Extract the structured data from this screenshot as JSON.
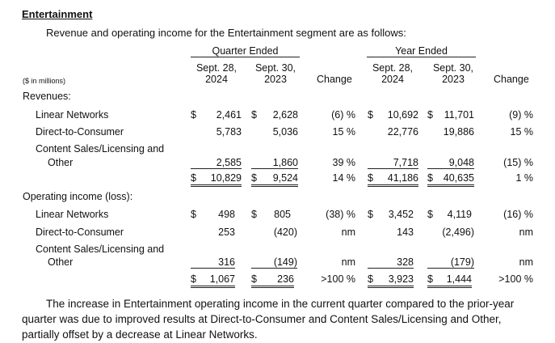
{
  "section_title": "Entertainment",
  "intro": "Revenue and operating income for the Entertainment segment are as follows:",
  "header": {
    "quarter_group": "Quarter Ended",
    "year_group": "Year Ended",
    "col1": [
      "Sept. 28,",
      "2024"
    ],
    "col2": [
      "Sept. 30,",
      "2023"
    ],
    "col4": [
      "Sept. 28,",
      "2024"
    ],
    "col5": [
      "Sept. 30,",
      "2023"
    ],
    "change": "Change",
    "units": "($ in millions)"
  },
  "revenues": {
    "label": "Revenues:",
    "rows": [
      {
        "label": "Linear Networks",
        "q24": "2,461",
        "q23": "2,628",
        "qchg": "(6) %",
        "y24": "10,692",
        "y23": "11,701",
        "ychg": "(9) %"
      },
      {
        "label": "Direct-to-Consumer",
        "q24": "5,783",
        "q23": "5,036",
        "qchg": "15 %",
        "y24": "22,776",
        "y23": "19,886",
        "ychg": "15 %"
      },
      {
        "label1": "Content Sales/Licensing and",
        "label2": "Other",
        "q24": "2,585",
        "q23": "1,860",
        "qchg": "39 %",
        "y24": "7,718",
        "y23": "9,048",
        "ychg": "(15) %"
      }
    ],
    "total": {
      "q24": "10,829",
      "q23": "9,524",
      "qchg": "14 %",
      "y24": "41,186",
      "y23": "40,635",
      "ychg": "1 %"
    }
  },
  "operating_income": {
    "label": "Operating income (loss):",
    "rows": [
      {
        "label": "Linear Networks",
        "q24": "498",
        "q23": "805",
        "qchg": "(38) %",
        "y24": "3,452",
        "y23": "4,119",
        "ychg": "(16) %"
      },
      {
        "label": "Direct-to-Consumer",
        "q24": "253",
        "q23": "(420)",
        "qchg": "nm",
        "y24": "143",
        "y23": "(2,496)",
        "ychg": "nm"
      },
      {
        "label1": "Content Sales/Licensing and",
        "label2": "Other",
        "q24": "316",
        "q23": "(149)",
        "qchg": "nm",
        "y24": "328",
        "y23": "(179)",
        "ychg": "nm"
      }
    ],
    "total": {
      "q24": "1,067",
      "q23": "236",
      "qchg": ">100 %",
      "y24": "3,923",
      "y23": "1,444",
      "ychg": ">100 %"
    }
  },
  "currency_symbol": "$",
  "closing_paragraph": [
    "The increase in Entertainment operating income in the current quarter compared to the prior-year",
    "quarter was due to improved results at Direct-to-Consumer and Content Sales/Licensing and Other,",
    "partially offset by a decrease at Linear Networks."
  ]
}
